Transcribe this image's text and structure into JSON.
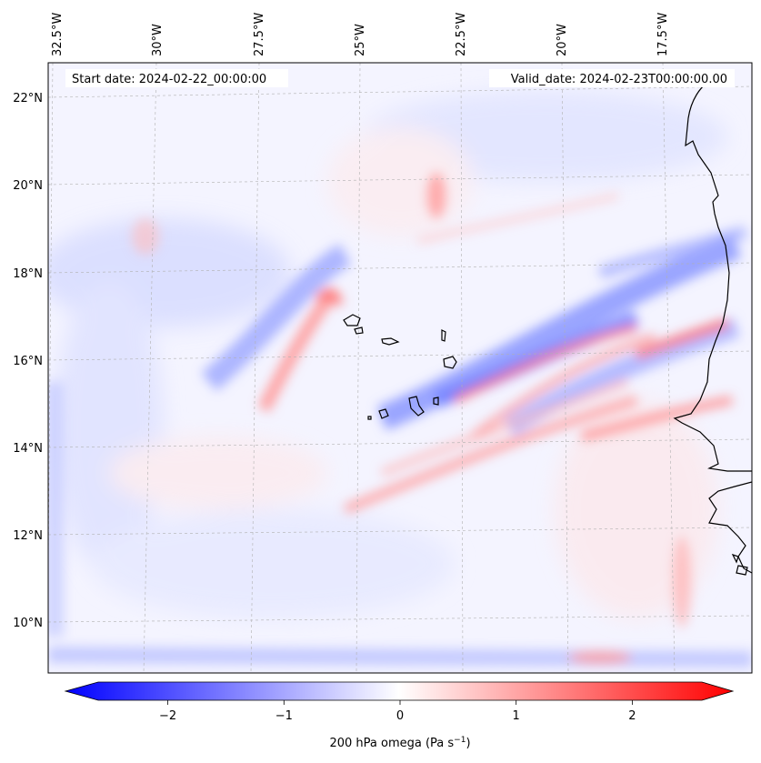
{
  "map": {
    "annotations": {
      "start": "Start date: 2024-02-22_00:00:00",
      "valid": "Valid_date: 2024-02-23T00:00:00.00"
    },
    "lon_labels": [
      "32.5°W",
      "30°W",
      "27.5°W",
      "25°W",
      "22.5°W",
      "20°W",
      "17.5°W"
    ],
    "lat_labels": [
      "22°N",
      "20°N",
      "18°N",
      "16°N",
      "14°N",
      "12°N",
      "10°N"
    ],
    "colorbar": {
      "min": -2.6,
      "max": 2.6,
      "ticks": [
        "−2",
        "−1",
        "0",
        "1",
        "2"
      ],
      "tick_values": [
        -2,
        -1,
        0,
        1,
        2
      ],
      "label_main": "200 hPa omega (Pa s",
      "label_sup": "−1",
      "label_close": ")",
      "colors": {
        "negative": "#0000ff",
        "neutral": "#ffffff",
        "positive": "#ff0000"
      }
    },
    "colors": {
      "coast": "#000000",
      "grid": "#b0b0b0"
    }
  }
}
